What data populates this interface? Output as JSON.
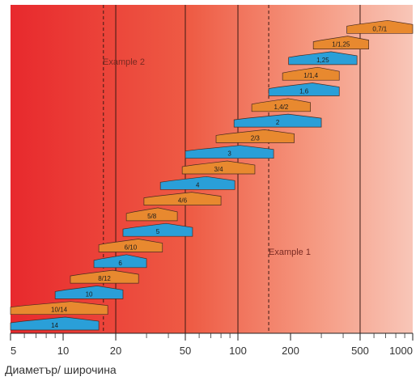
{
  "chart_data": {
    "type": "range-bar",
    "title": "",
    "xlabel": "Диаметър/ широчина",
    "ylabel": "",
    "x_scale": "log",
    "xlim": [
      5,
      1000
    ],
    "x_ticks": [
      5,
      10,
      20,
      50,
      100,
      200,
      500,
      1000
    ],
    "x_tick_labels": [
      "5",
      "10",
      "20",
      "50",
      "100",
      "200",
      "500",
      "1000"
    ],
    "background": "red-to-pink gradient (left to right)",
    "grid_lines_solid": [
      20,
      50,
      100,
      500
    ],
    "grid_lines_dashed": [
      17,
      150
    ],
    "colors": {
      "orange_series": "#e8892f",
      "blue_series": "#2a9fd8",
      "bg_left": "#e8292d",
      "bg_right": "#f7c1b4"
    },
    "series": [
      {
        "color_name": "orange",
        "bars": [
          {
            "label": "0,7/1",
            "min": 420,
            "max": 1000
          },
          {
            "label": "1/1,25",
            "min": 270,
            "max": 560
          },
          {
            "label": "1/1,4",
            "min": 180,
            "max": 380
          },
          {
            "label": "1,4/2",
            "min": 120,
            "max": 260
          },
          {
            "label": "2/3",
            "min": 75,
            "max": 210
          },
          {
            "label": "3/4",
            "min": 48,
            "max": 125
          },
          {
            "label": "4/6",
            "min": 29,
            "max": 80
          },
          {
            "label": "5/8",
            "min": 23,
            "max": 45
          },
          {
            "label": "6/10",
            "min": 16,
            "max": 37
          },
          {
            "label": "8/12",
            "min": 11,
            "max": 27
          },
          {
            "label": "10/14",
            "min": 5,
            "max": 18
          }
        ]
      },
      {
        "color_name": "blue",
        "bars": [
          {
            "label": "1,25",
            "min": 195,
            "max": 480
          },
          {
            "label": "1,6",
            "min": 150,
            "max": 380
          },
          {
            "label": "2",
            "min": 95,
            "max": 300
          },
          {
            "label": "3",
            "min": 50,
            "max": 160
          },
          {
            "label": "4",
            "min": 36,
            "max": 96
          },
          {
            "label": "5",
            "min": 22,
            "max": 55
          },
          {
            "label": "6",
            "min": 15,
            "max": 30
          },
          {
            "label": "10",
            "min": 9,
            "max": 22
          },
          {
            "label": "14",
            "min": 5,
            "max": 16
          }
        ]
      }
    ],
    "annotations": [
      "Example 2",
      "Example 1"
    ]
  }
}
